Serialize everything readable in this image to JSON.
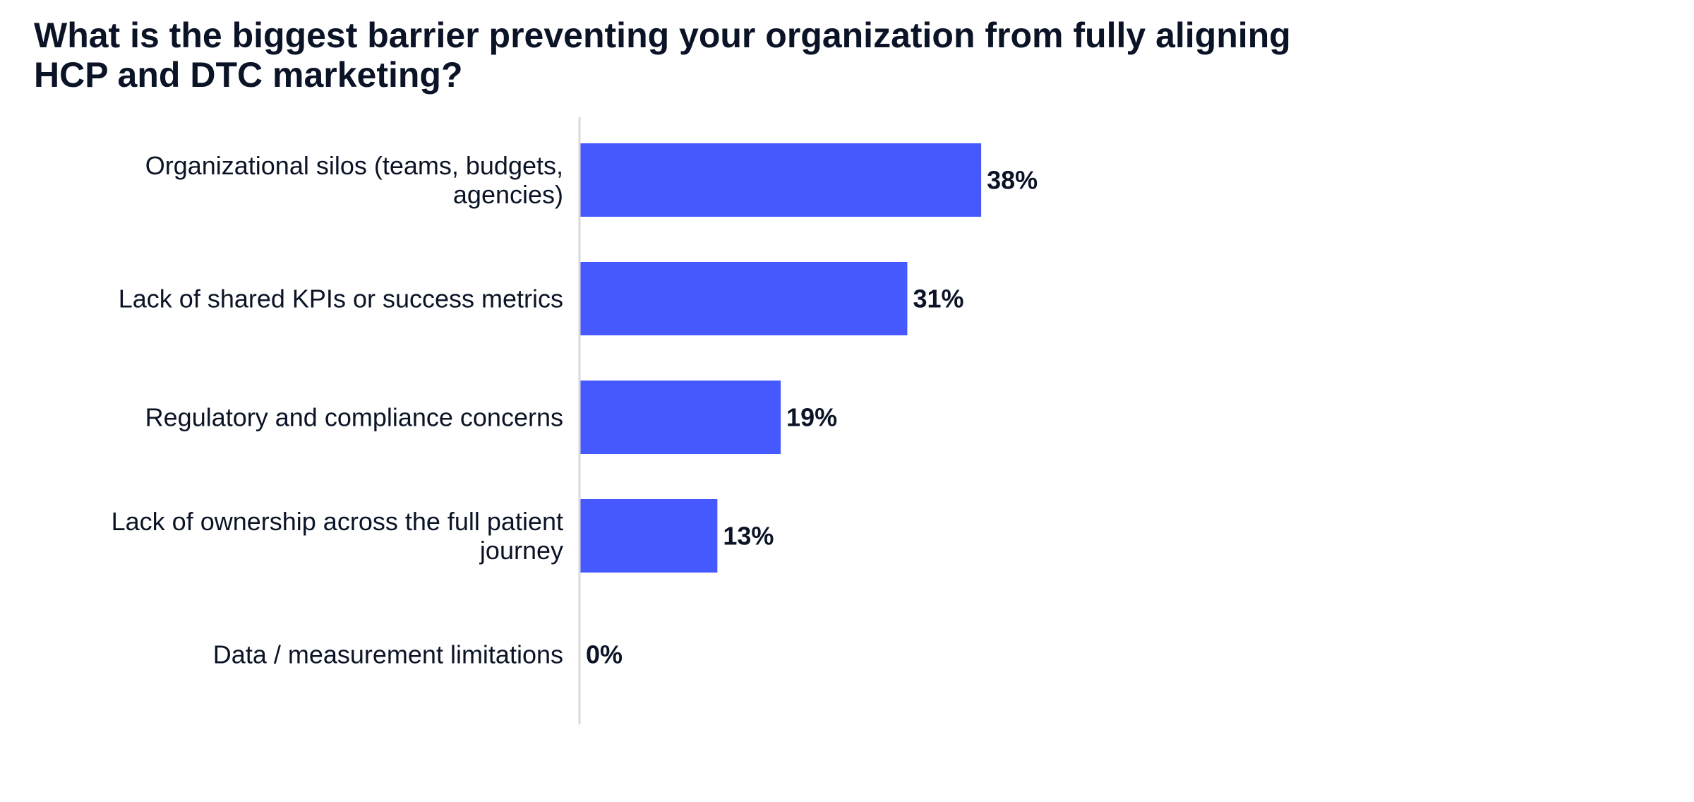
{
  "chart_data": {
    "type": "bar",
    "orientation": "horizontal",
    "title_lines": [
      "What is the biggest barrier preventing your organization from fully aligning",
      "HCP and DTC marketing?"
    ],
    "categories": [
      [
        "Organizational silos (teams, budgets,",
        "agencies)"
      ],
      [
        "Lack of shared KPIs or success metrics"
      ],
      [
        "Regulatory and compliance concerns"
      ],
      [
        "Lack of ownership across the full patient",
        "journey"
      ],
      [
        "Data / measurement limitations"
      ]
    ],
    "values": [
      38,
      31,
      19,
      13,
      0
    ],
    "value_labels": [
      "38%",
      "31%",
      "19%",
      "13%",
      "0%"
    ],
    "xlim": [
      0,
      100
    ],
    "grid": false,
    "legend": "none",
    "bar_color": "#4559ff",
    "axis_color": "#d9d9d9",
    "text_color": "#0b1426"
  }
}
